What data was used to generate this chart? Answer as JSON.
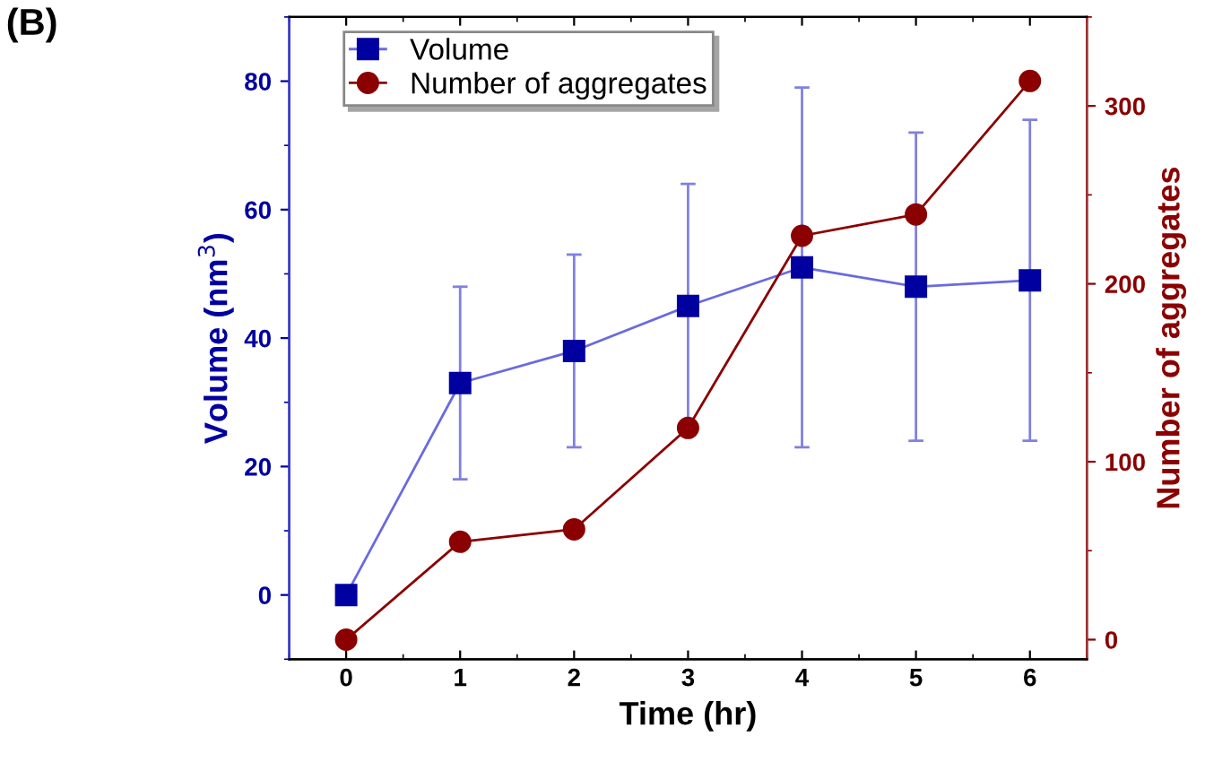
{
  "chart_data": {
    "type": "line",
    "xlabel": "Time (hr)",
    "ylabel": "Volume (nm$^{3}$)",
    "y2label": "Number of aggregates",
    "annotations": [
      "(B)"
    ],
    "x": [
      0,
      1,
      2,
      3,
      4,
      5,
      6
    ],
    "xlim": [
      -0.5,
      6.5
    ],
    "xticks": [
      0,
      1,
      2,
      3,
      4,
      5,
      6
    ],
    "ylim": [
      -10,
      90
    ],
    "yticks": [
      0,
      20,
      40,
      60,
      80
    ],
    "y2lim": [
      -11,
      350
    ],
    "y2ticks": [
      0,
      100,
      200,
      300
    ],
    "grid": false,
    "legend": "top left",
    "line_style": "solid",
    "series": [
      {
        "name": "Volume",
        "color": "#0000a0",
        "marker": "square",
        "values": [
          0,
          33,
          38,
          45,
          51,
          48,
          49
        ],
        "errors": [
          null,
          15,
          15,
          19,
          28,
          24,
          25
        ]
      },
      {
        "name": "Number of aggregates",
        "color": "#8b0000",
        "marker": "circle",
        "axis": "y2",
        "values": [
          0,
          55,
          62,
          119,
          227,
          239,
          314
        ]
      }
    ]
  }
}
